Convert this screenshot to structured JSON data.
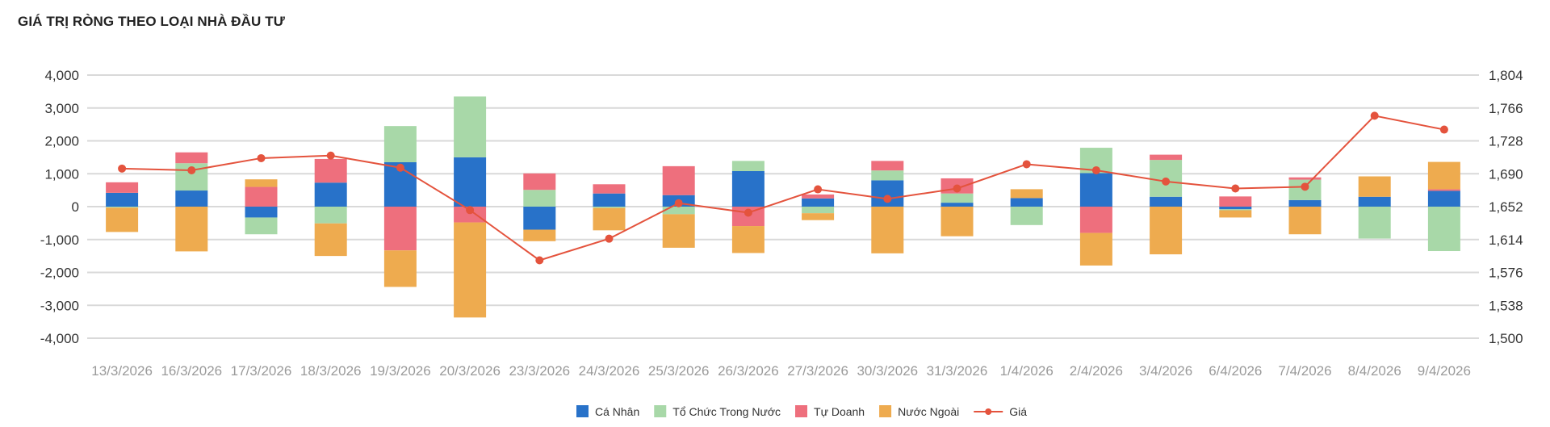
{
  "chart_data": {
    "type": "bar",
    "title": "GIÁ TRỊ RÒNG THEO LOẠI NHÀ ĐẦU TƯ",
    "stacked": true,
    "categories": [
      "13/3/2026",
      "16/3/2026",
      "17/3/2026",
      "18/3/2026",
      "19/3/2026",
      "20/3/2026",
      "23/3/2026",
      "24/3/2026",
      "25/3/2026",
      "26/3/2026",
      "27/3/2026",
      "30/3/2026",
      "31/3/2026",
      "1/4/2026",
      "2/4/2026",
      "3/4/2026",
      "6/4/2026",
      "7/4/2026",
      "8/4/2026",
      "9/4/2026"
    ],
    "series": [
      {
        "name": "Cá Nhân",
        "color": "#2872c9",
        "axis": "left",
        "values": [
          420,
          490,
          -330,
          730,
          1350,
          1500,
          -700,
          400,
          350,
          1080,
          250,
          800,
          120,
          260,
          1020,
          300,
          -80,
          200,
          300,
          480
        ]
      },
      {
        "name": "Tổ Chức Trong Nước",
        "color": "#a8d8a8",
        "axis": "left",
        "values": [
          -30,
          830,
          -510,
          -510,
          1100,
          1850,
          510,
          -40,
          -230,
          310,
          -200,
          300,
          280,
          -560,
          770,
          1120,
          -30,
          620,
          -970,
          -1350
        ]
      },
      {
        "name": "Tự Doanh",
        "color": "#ee6f7d",
        "axis": "left",
        "values": [
          320,
          330,
          600,
          720,
          -1330,
          -480,
          500,
          280,
          880,
          -590,
          120,
          290,
          460,
          0,
          -800,
          160,
          310,
          70,
          0,
          50
        ]
      },
      {
        "name": "Nước Ngoài",
        "color": "#eeab4f",
        "axis": "left",
        "values": [
          -740,
          -1360,
          230,
          -990,
          -1110,
          -2890,
          -350,
          -680,
          -1020,
          -820,
          -210,
          -1420,
          -900,
          270,
          -990,
          -1450,
          -220,
          -840,
          620,
          830
        ]
      }
    ],
    "line": {
      "name": "Giá",
      "color": "#e4533d",
      "axis": "right",
      "values": [
        1696,
        1694,
        1708,
        1711,
        1697,
        1648,
        1590,
        1615,
        1656,
        1645,
        1672,
        1661,
        1673,
        1701,
        1694,
        1681,
        1673,
        1675,
        1757,
        1741
      ]
    },
    "y_left": {
      "min": -4000,
      "max": 4000,
      "ticks": [
        "4,000",
        "3,000",
        "2,000",
        "1,000",
        "0",
        "-1,000",
        "-2,000",
        "-3,000",
        "-4,000"
      ]
    },
    "y_right": {
      "min": 1500,
      "max": 1804,
      "ticks": [
        "1,804",
        "1,766",
        "1,728",
        "1,690",
        "1,652",
        "1,614",
        "1,576",
        "1,538",
        "1,500"
      ]
    },
    "grid": true,
    "legend_position": "bottom"
  }
}
